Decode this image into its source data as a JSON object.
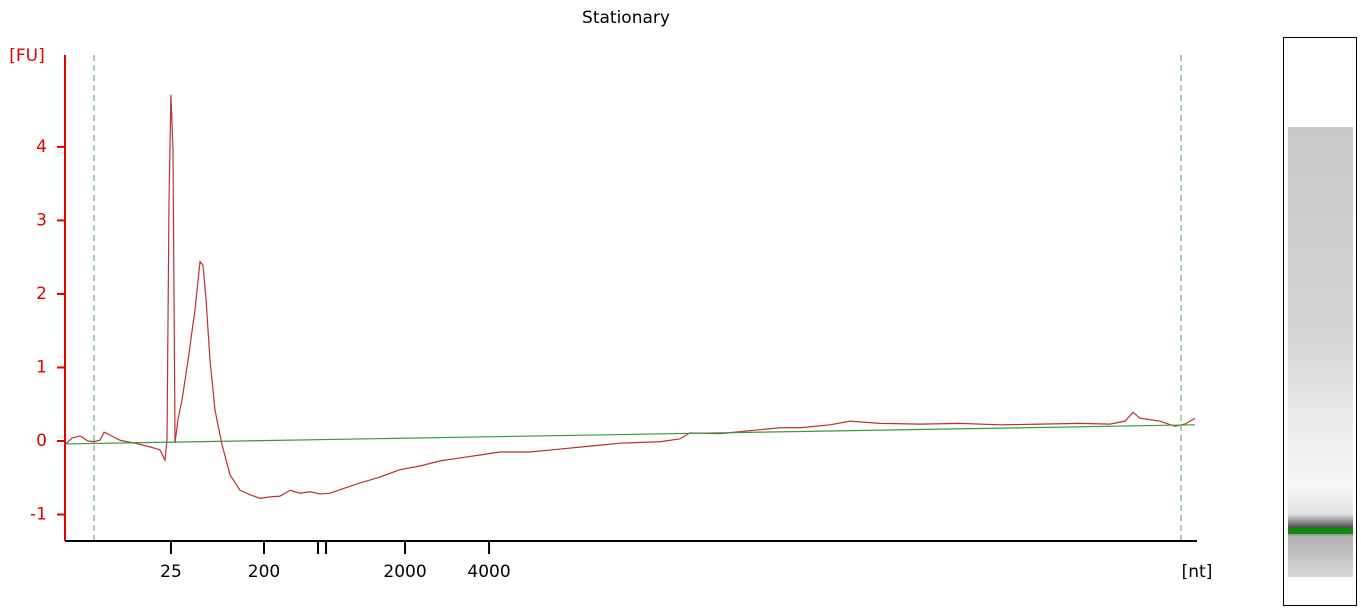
{
  "chart_data": {
    "type": "line",
    "title": "Stationary",
    "y_label": "[FU]",
    "x_label": "[nt]",
    "y_label_color": "#e00000",
    "xlim": [
      0,
      100
    ],
    "ylim": [
      -1.36,
      5.25
    ],
    "xticks": [
      {
        "value": 9.36,
        "label": "25"
      },
      {
        "value": 17.58,
        "label": "200"
      },
      {
        "value": 22.35,
        "label": null
      },
      {
        "value": 23.06,
        "label": null
      },
      {
        "value": 30.04,
        "label": "2000"
      },
      {
        "value": 37.46,
        "label": "4000"
      }
    ],
    "yticks": [
      -1,
      0,
      1,
      2,
      3,
      4
    ],
    "marker_lines": {
      "color": "#5aa05a",
      "x": [
        2.56,
        98.59
      ]
    },
    "series": [
      {
        "color": "#b83232",
        "x": [
          0,
          0.62,
          1.33,
          2.03,
          2.56,
          3.09,
          3.45,
          3.98,
          4.86,
          6.18,
          7.51,
          8.39,
          8.83,
          9.01,
          9.19,
          9.36,
          9.54,
          9.72,
          9.98,
          10.34,
          10.87,
          11.48,
          11.93,
          12.19,
          12.46,
          12.81,
          13.25,
          13.87,
          14.58,
          15.46,
          16.34,
          17.23,
          18.11,
          19.0,
          19.88,
          20.76,
          21.64,
          22.53,
          23.41,
          24.73,
          26.06,
          27.83,
          29.59,
          31.36,
          33.13,
          34.89,
          36.66,
          38.43,
          41.08,
          43.73,
          46.38,
          49.03,
          52.56,
          54.33,
          55.21,
          57.86,
          60.51,
          63.16,
          64.93,
          67.58,
          69.35,
          72.0,
          75.53,
          79.06,
          82.6,
          86.13,
          89.66,
          92.31,
          93.64,
          94.35,
          94.96,
          96.73,
          98.06,
          98.94,
          99.82
        ],
        "values": [
          -0.05,
          0.04,
          0.07,
          0,
          -0.01,
          0.01,
          0.12,
          0.08,
          0.01,
          -0.03,
          -0.08,
          -0.12,
          -0.26,
          0.01,
          3.28,
          4.71,
          3.96,
          -0.03,
          0.29,
          0.56,
          1.1,
          1.78,
          2.44,
          2.39,
          1.92,
          1.1,
          0.42,
          -0.05,
          -0.46,
          -0.67,
          -0.73,
          -0.78,
          -0.76,
          -0.75,
          -0.67,
          -0.71,
          -0.69,
          -0.72,
          -0.71,
          -0.64,
          -0.57,
          -0.49,
          -0.39,
          -0.34,
          -0.27,
          -0.23,
          -0.19,
          -0.15,
          -0.15,
          -0.11,
          -0.07,
          -0.03,
          -0.01,
          0.03,
          0.11,
          0.1,
          0.14,
          0.18,
          0.18,
          0.22,
          0.27,
          0.24,
          0.23,
          0.24,
          0.22,
          0.23,
          0.24,
          0.23,
          0.27,
          0.39,
          0.31,
          0.27,
          0.2,
          0.23,
          0.31
        ]
      },
      {
        "color": "#3a9a3a",
        "x": [
          0,
          99.82
        ],
        "values": [
          -0.04,
          0.22
        ]
      }
    ]
  }
}
